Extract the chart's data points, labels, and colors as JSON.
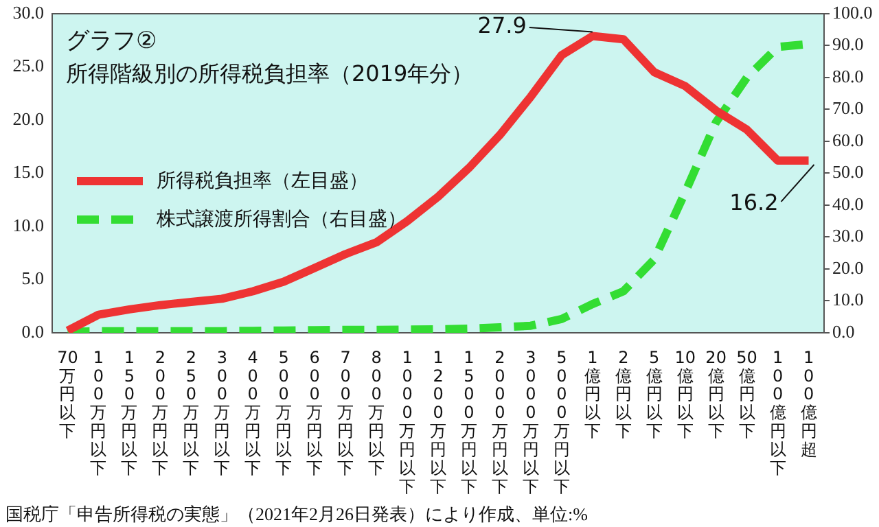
{
  "chart_data": {
    "type": "line",
    "title": "グラフ②",
    "subtitle": "所得階級別の所得税負担率（2019年分）",
    "categories": [
      "70万円以下",
      "100万円以下",
      "150万円以下",
      "200万円以下",
      "250万円以下",
      "300万円以下",
      "400万円以下",
      "500万円以下",
      "600万円以下",
      "700万円以下",
      "800万円以下",
      "1000万円以下",
      "1200万円以下",
      "1500万円以下",
      "2000万円以下",
      "3000万円以下",
      "5000万円以下",
      "1億円以下",
      "2億円以下",
      "5億円以下",
      "10億円以下",
      "20億円以下",
      "50億円以下",
      "100億円以下",
      "100億円超"
    ],
    "series": [
      {
        "name": "所得税負担率（左目盛）",
        "color": "#ee3333",
        "line_style": "solid",
        "values": [
          0.2,
          1.7,
          2.2,
          2.6,
          2.9,
          3.2,
          3.9,
          4.8,
          6.1,
          7.4,
          8.5,
          10.5,
          12.8,
          15.5,
          18.6,
          22.2,
          26.1,
          27.9,
          27.6,
          24.5,
          23.2,
          20.9,
          19.1,
          16.2,
          16.2
        ]
      },
      {
        "name": "株式譲渡所得割合（右目盛）",
        "color": "#33dd33",
        "line_style": "dashed",
        "axis": "y2",
        "values": [
          0.3,
          0.5,
          0.5,
          0.5,
          0.5,
          0.5,
          0.6,
          0.7,
          0.8,
          0.9,
          0.9,
          1.0,
          1.1,
          1.3,
          1.7,
          2.2,
          4.3,
          9,
          13,
          23,
          44,
          66,
          80,
          89.6,
          90.5
        ]
      }
    ],
    "ylim": [
      0,
      30
    ],
    "yticks": [
      {
        "value": 0,
        "label": "0.0"
      },
      {
        "value": 5,
        "label": "5.0"
      },
      {
        "value": 10,
        "label": "10.0"
      },
      {
        "value": 15,
        "label": "15.0"
      },
      {
        "value": 20,
        "label": "20.0"
      },
      {
        "value": 25,
        "label": "25.0"
      },
      {
        "value": 30,
        "label": "30.0"
      }
    ],
    "y2lim": [
      0,
      100
    ],
    "y2ticks": [
      {
        "value": 0,
        "label": "0.0"
      },
      {
        "value": 10,
        "label": "10.0"
      },
      {
        "value": 20,
        "label": "20.0"
      },
      {
        "value": 30,
        "label": "30.0"
      },
      {
        "value": 40,
        "label": "40.0"
      },
      {
        "value": 50,
        "label": "50.0"
      },
      {
        "value": 60,
        "label": "60.0"
      },
      {
        "value": 70,
        "label": "70.0"
      },
      {
        "value": 80,
        "label": "80.0"
      },
      {
        "value": 90,
        "label": "90.0"
      },
      {
        "value": 100,
        "label": "100.0"
      }
    ],
    "grid": false,
    "legend": "left",
    "marker": "none",
    "annotations": [
      {
        "text": "27.9",
        "x": "1億円以下",
        "y": 27.9
      },
      {
        "text": "16.2",
        "x": "100億円超",
        "y": 16.2
      },
      "国税庁「申告所得税の実態」（2021年2月26日発表）により作成、単位:%"
    ]
  }
}
